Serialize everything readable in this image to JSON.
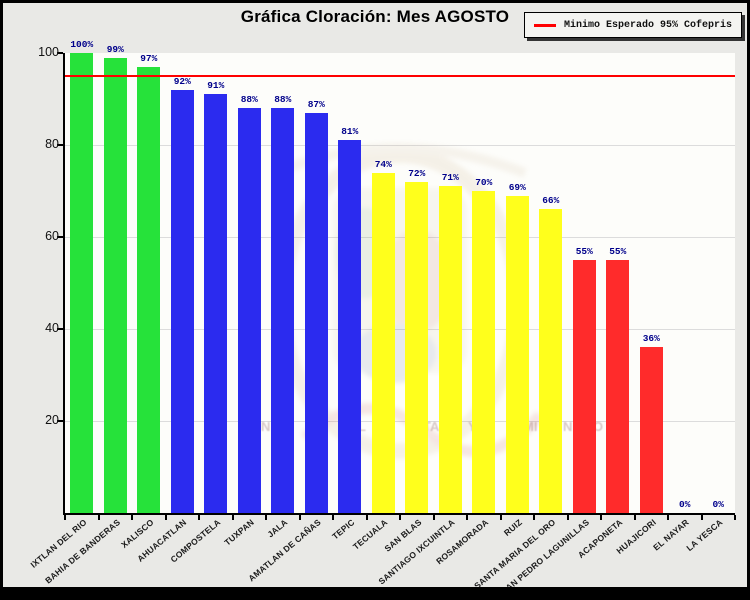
{
  "title": "Gráfica Cloración: Mes AGOSTO",
  "legend": {
    "label": "Minimo Esperado 95% Cofepris",
    "line_color": "#FF0000",
    "position": "top-right"
  },
  "chart_data": {
    "type": "bar",
    "title": "Gráfica Cloración: Mes AGOSTO",
    "categories": [
      "IXTLAN DEL RIO",
      "BAHIA DE BANDERAS",
      "XALISCO",
      "AHUACATLAN",
      "COMPOSTELA",
      "TUXPAN",
      "JALA",
      "AMATLAN DE CAÑAS",
      "TEPIC",
      "TECUALA",
      "SAN BLAS",
      "SANTIAGO IXCUINTLA",
      "ROSAMORADA",
      "RUIZ",
      "SANTA MARIA DEL ORO",
      "SAN PEDRO LAGUNILLAS",
      "ACAPONETA",
      "HUAJICORI",
      "EL NAYAR",
      "LA YESCA"
    ],
    "values": [
      100,
      99,
      97,
      92,
      91,
      88,
      88,
      87,
      81,
      74,
      72,
      71,
      70,
      69,
      66,
      55,
      55,
      36,
      0,
      0
    ],
    "value_labels": [
      "100%",
      "99%",
      "97%",
      "92%",
      "91%",
      "88%",
      "88%",
      "87%",
      "81%",
      "74%",
      "72%",
      "71%",
      "70%",
      "69%",
      "66%",
      "55%",
      "55%",
      "36%",
      "0%",
      "0%"
    ],
    "bar_colors": [
      "#26E23A",
      "#26E23A",
      "#26E23A",
      "#2B2BEF",
      "#2B2BEF",
      "#2B2BEF",
      "#2B2BEF",
      "#2B2BEF",
      "#2B2BEF",
      "#FFFF1C",
      "#FFFF1C",
      "#FFFF1C",
      "#FFFF1C",
      "#FFFF1C",
      "#FFFF1C",
      "#FF2B2B",
      "#FF2B2B",
      "#FF2B2B",
      "#FF2B2B",
      "#FF2B2B"
    ],
    "xlabel": "",
    "ylabel": "",
    "ylim": [
      0,
      100
    ],
    "yticks": [
      20,
      40,
      60,
      80,
      100
    ],
    "grid": "horizontal",
    "threshold": {
      "value": 95,
      "color": "#FF0000",
      "label": "Minimo Esperado 95% Cofepris"
    },
    "legend_position": "top-right"
  },
  "watermark": {
    "name": "faded-government-emblem",
    "glyphs": [
      "N",
      "ST",
      "L",
      "TA",
      "Y",
      "MI",
      "N",
      "O"
    ]
  },
  "colors": {
    "green": "#26E23A",
    "blue": "#2B2BEF",
    "yellow": "#FFFF1C",
    "red": "#FF2B2B",
    "value_label": "#00008B",
    "threshold": "#FF0000",
    "background": "#E9E9E6",
    "plot_background": "#FDFDFA",
    "grid": "#DCDCDC",
    "axis": "#000000"
  }
}
